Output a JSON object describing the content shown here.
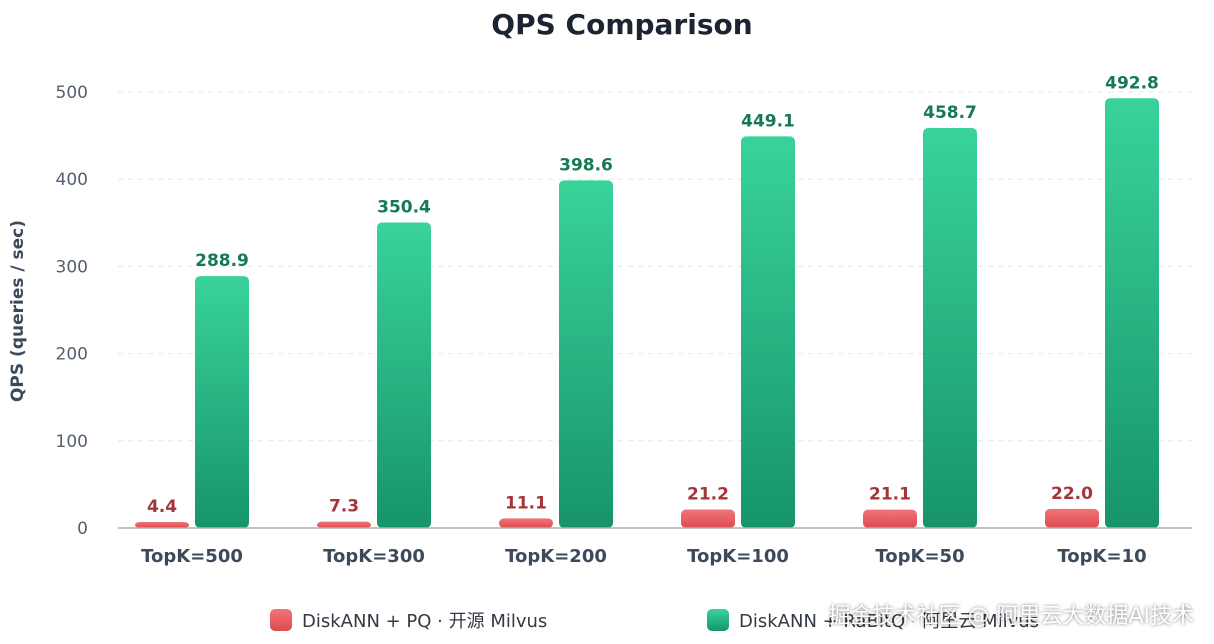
{
  "chart_data": {
    "type": "bar",
    "title": "QPS Comparison",
    "ylabel": "QPS (queries / sec)",
    "xlabel": "",
    "ylim": [
      0,
      540
    ],
    "yticks": [
      0,
      100,
      200,
      300,
      400,
      500
    ],
    "categories": [
      "TopK=500",
      "TopK=300",
      "TopK=200",
      "TopK=100",
      "TopK=50",
      "TopK=10"
    ],
    "series": [
      {
        "name": "DiskANN + PQ · 开源 Milvus",
        "values": [
          4.4,
          7.3,
          11.1,
          21.2,
          21.1,
          22.0
        ],
        "color": "#e8585c",
        "label_color": "#a6343a"
      },
      {
        "name": "DiskANN + RaBitQ · 阿里云 Milvus",
        "values": [
          288.9,
          350.4,
          398.6,
          449.1,
          458.7,
          492.8
        ],
        "color": "#1fa978",
        "label_color": "#157a52"
      }
    ],
    "value_labels": [
      [
        "4.4",
        "7.3",
        "11.1",
        "21.2",
        "21.1",
        "22.0"
      ],
      [
        "288.9",
        "350.4",
        "398.6",
        "449.1",
        "458.7",
        "492.8"
      ]
    ],
    "grid": true,
    "legend_position": "bottom"
  },
  "watermark": "掘金技术社区 @ 阿里云大数据AI技术"
}
